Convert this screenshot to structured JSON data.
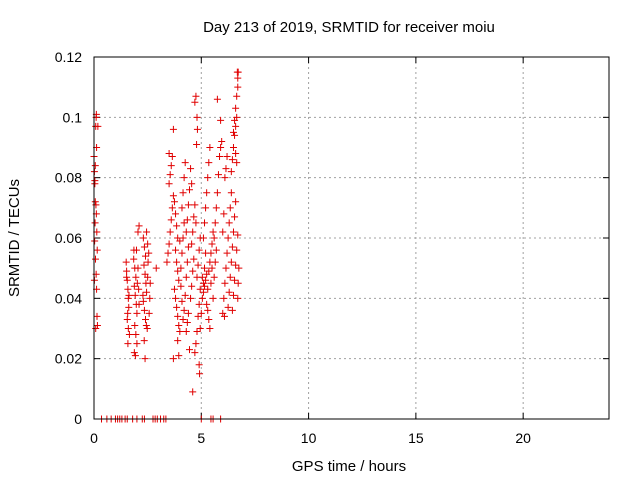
{
  "chart_data": {
    "type": "scatter",
    "title": "Day 213 of 2019, SRMTID for receiver moiu",
    "xlabel": "GPS time / hours",
    "ylabel": "SRMTID / TECUs",
    "xlim": [
      0,
      24
    ],
    "ylim": [
      0,
      0.12
    ],
    "xticks": [
      0,
      5,
      10,
      15,
      20
    ],
    "xtick_labels": [
      "0",
      "5",
      "10",
      "15",
      "20"
    ],
    "yticks": [
      0,
      0.02,
      0.04,
      0.06,
      0.08,
      0.1,
      0.12
    ],
    "ytick_labels": [
      "0",
      "0.02",
      "0.04",
      "0.06",
      "0.08",
      "0.1",
      "0.12"
    ],
    "grid": true,
    "marker": "plus",
    "color": "#e00000",
    "series": [
      {
        "points": [
          [
            0.0,
            0.087
          ],
          [
            0.02,
            0.082
          ],
          [
            0.04,
            0.079
          ],
          [
            0.06,
            0.072
          ],
          [
            0.08,
            0.097
          ],
          [
            0.1,
            0.1
          ],
          [
            0.12,
            0.09
          ],
          [
            0.05,
            0.065
          ],
          [
            0.03,
            0.059
          ],
          [
            0.07,
            0.053
          ],
          [
            0.02,
            0.046
          ],
          [
            0.09,
            0.071
          ],
          [
            0.11,
            0.068
          ],
          [
            0.13,
            0.062
          ],
          [
            0.15,
            0.056
          ],
          [
            0.1,
            0.048
          ],
          [
            0.12,
            0.043
          ],
          [
            0.14,
            0.034
          ],
          [
            0.16,
            0.031
          ],
          [
            0.08,
            0.03
          ],
          [
            0.04,
            0.078
          ],
          [
            0.06,
            0.084
          ],
          [
            0.18,
            0.097
          ],
          [
            0.11,
            0.101
          ],
          [
            1.5,
            0.052
          ],
          [
            1.52,
            0.049
          ],
          [
            1.55,
            0.046
          ],
          [
            1.58,
            0.043
          ],
          [
            1.6,
            0.04
          ],
          [
            1.62,
            0.037
          ],
          [
            1.55,
            0.033
          ],
          [
            1.6,
            0.03
          ],
          [
            1.65,
            0.028
          ],
          [
            1.58,
            0.025
          ],
          [
            1.52,
            0.047
          ],
          [
            1.63,
            0.041
          ],
          [
            1.57,
            0.035
          ],
          [
            1.85,
            0.053
          ],
          [
            1.9,
            0.05
          ],
          [
            1.95,
            0.047
          ],
          [
            1.88,
            0.044
          ],
          [
            1.92,
            0.041
          ],
          [
            1.97,
            0.038
          ],
          [
            2.0,
            0.035
          ],
          [
            1.9,
            0.031
          ],
          [
            1.95,
            0.028
          ],
          [
            2.0,
            0.025
          ],
          [
            1.88,
            0.022
          ],
          [
            1.93,
            0.021
          ],
          [
            2.02,
            0.045
          ],
          [
            1.86,
            0.056
          ],
          [
            1.98,
            0.056
          ],
          [
            2.05,
            0.05
          ],
          [
            2.08,
            0.043
          ],
          [
            2.1,
            0.038
          ],
          [
            2.05,
            0.062
          ],
          [
            2.1,
            0.064
          ],
          [
            2.3,
            0.06
          ],
          [
            2.35,
            0.057
          ],
          [
            2.4,
            0.054
          ],
          [
            2.33,
            0.051
          ],
          [
            2.38,
            0.048
          ],
          [
            2.42,
            0.045
          ],
          [
            2.45,
            0.042
          ],
          [
            2.3,
            0.039
          ],
          [
            2.35,
            0.036
          ],
          [
            2.4,
            0.033
          ],
          [
            2.44,
            0.031
          ],
          [
            2.48,
            0.03
          ],
          [
            2.5,
            0.047
          ],
          [
            2.52,
            0.052
          ],
          [
            2.55,
            0.055
          ],
          [
            2.45,
            0.062
          ],
          [
            2.5,
            0.058
          ],
          [
            2.34,
            0.026
          ],
          [
            2.38,
            0.02
          ],
          [
            2.28,
            0.041
          ],
          [
            2.6,
            0.04
          ],
          [
            2.62,
            0.045
          ],
          [
            2.57,
            0.035
          ],
          [
            2.9,
            0.05
          ],
          [
            3.4,
            0.052
          ],
          [
            3.45,
            0.055
          ],
          [
            3.5,
            0.058
          ],
          [
            3.55,
            0.062
          ],
          [
            3.6,
            0.066
          ],
          [
            3.65,
            0.07
          ],
          [
            3.7,
            0.074
          ],
          [
            3.5,
            0.078
          ],
          [
            3.55,
            0.081
          ],
          [
            3.6,
            0.084
          ],
          [
            3.65,
            0.087
          ],
          [
            3.5,
            0.088
          ],
          [
            3.7,
            0.096
          ],
          [
            3.75,
            0.072
          ],
          [
            3.8,
            0.068
          ],
          [
            3.85,
            0.064
          ],
          [
            3.9,
            0.06
          ],
          [
            3.8,
            0.056
          ],
          [
            3.85,
            0.052
          ],
          [
            3.9,
            0.049
          ],
          [
            3.95,
            0.046
          ],
          [
            3.75,
            0.043
          ],
          [
            3.8,
            0.04
          ],
          [
            3.85,
            0.037
          ],
          [
            3.9,
            0.034
          ],
          [
            3.95,
            0.031
          ],
          [
            4.0,
            0.029
          ],
          [
            3.9,
            0.026
          ],
          [
            3.95,
            0.021
          ],
          [
            3.7,
            0.02
          ],
          [
            4.05,
            0.05
          ],
          [
            4.1,
            0.055
          ],
          [
            4.15,
            0.06
          ],
          [
            4.2,
            0.065
          ],
          [
            4.1,
            0.07
          ],
          [
            4.15,
            0.075
          ],
          [
            4.2,
            0.08
          ],
          [
            4.25,
            0.085
          ],
          [
            4.0,
            0.059
          ],
          [
            4.05,
            0.044
          ],
          [
            4.1,
            0.039
          ],
          [
            4.15,
            0.033
          ],
          [
            4.2,
            0.036
          ],
          [
            4.25,
            0.041
          ],
          [
            4.3,
            0.047
          ],
          [
            4.35,
            0.052
          ],
          [
            4.4,
            0.057
          ],
          [
            4.3,
            0.062
          ],
          [
            4.35,
            0.066
          ],
          [
            4.4,
            0.071
          ],
          [
            4.45,
            0.076
          ],
          [
            4.5,
            0.083
          ],
          [
            4.55,
            0.078
          ],
          [
            4.3,
            0.029
          ],
          [
            4.35,
            0.032
          ],
          [
            4.4,
            0.035
          ],
          [
            4.5,
            0.04
          ],
          [
            4.55,
            0.044
          ],
          [
            4.6,
            0.049
          ],
          [
            4.65,
            0.053
          ],
          [
            4.55,
            0.058
          ],
          [
            4.6,
            0.062
          ],
          [
            4.65,
            0.067
          ],
          [
            4.7,
            0.071
          ],
          [
            4.75,
            0.065
          ],
          [
            4.45,
            0.023
          ],
          [
            4.6,
            0.009
          ],
          [
            4.7,
            0.022
          ],
          [
            4.75,
            0.025
          ],
          [
            4.8,
            0.029
          ],
          [
            4.85,
            0.034
          ],
          [
            4.9,
            0.038
          ],
          [
            4.95,
            0.043
          ],
          [
            4.8,
            0.047
          ],
          [
            4.85,
            0.051
          ],
          [
            4.9,
            0.056
          ],
          [
            4.95,
            0.06
          ],
          [
            4.7,
            0.105
          ],
          [
            4.75,
            0.107
          ],
          [
            4.8,
            0.1
          ],
          [
            4.82,
            0.096
          ],
          [
            4.78,
            0.091
          ],
          [
            4.9,
            0.018
          ],
          [
            4.92,
            0.015
          ],
          [
            4.95,
            0.03
          ],
          [
            5.0,
            0.035
          ],
          [
            5.05,
            0.04
          ],
          [
            5.1,
            0.045
          ],
          [
            5.15,
            0.05
          ],
          [
            5.2,
            0.055
          ],
          [
            5.1,
            0.06
          ],
          [
            5.15,
            0.065
          ],
          [
            5.2,
            0.07
          ],
          [
            5.25,
            0.075
          ],
          [
            5.3,
            0.08
          ],
          [
            5.35,
            0.085
          ],
          [
            5.4,
            0.09
          ],
          [
            5.05,
            0.047
          ],
          [
            5.1,
            0.042
          ],
          [
            5.15,
            0.044
          ],
          [
            5.2,
            0.046
          ],
          [
            5.25,
            0.048
          ],
          [
            5.3,
            0.043
          ],
          [
            5.35,
            0.049
          ],
          [
            5.4,
            0.052
          ],
          [
            5.45,
            0.055
          ],
          [
            5.5,
            0.058
          ],
          [
            5.55,
            0.062
          ],
          [
            5.25,
            0.038
          ],
          [
            5.3,
            0.036
          ],
          [
            5.35,
            0.033
          ],
          [
            5.4,
            0.03
          ],
          [
            5.45,
            0.045
          ],
          [
            5.5,
            0.05
          ],
          [
            5.6,
            0.06
          ],
          [
            5.65,
            0.065
          ],
          [
            5.7,
            0.07
          ],
          [
            5.75,
            0.075
          ],
          [
            5.8,
            0.081
          ],
          [
            5.85,
            0.087
          ],
          [
            5.9,
            0.09
          ],
          [
            5.95,
            0.092
          ],
          [
            5.55,
            0.04
          ],
          [
            5.6,
            0.047
          ],
          [
            5.65,
            0.052
          ],
          [
            5.7,
            0.056
          ],
          [
            5.75,
            0.106
          ],
          [
            5.9,
            0.099
          ],
          [
            6.0,
            0.035
          ],
          [
            6.05,
            0.04
          ],
          [
            6.1,
            0.045
          ],
          [
            6.15,
            0.05
          ],
          [
            6.2,
            0.055
          ],
          [
            6.25,
            0.06
          ],
          [
            6.3,
            0.065
          ],
          [
            6.35,
            0.07
          ],
          [
            6.4,
            0.075
          ],
          [
            6.1,
            0.08
          ],
          [
            6.15,
            0.083
          ],
          [
            6.2,
            0.087
          ],
          [
            6.05,
            0.068
          ],
          [
            6.0,
            0.062
          ],
          [
            6.08,
            0.034
          ],
          [
            6.25,
            0.037
          ],
          [
            6.3,
            0.042
          ],
          [
            6.35,
            0.047
          ],
          [
            6.4,
            0.052
          ],
          [
            6.45,
            0.057
          ],
          [
            6.5,
            0.062
          ],
          [
            6.55,
            0.067
          ],
          [
            6.6,
            0.072
          ],
          [
            6.45,
            0.036
          ],
          [
            6.5,
            0.041
          ],
          [
            6.55,
            0.046
          ],
          [
            6.6,
            0.051
          ],
          [
            6.65,
            0.056
          ],
          [
            6.7,
            0.061
          ],
          [
            6.4,
            0.082
          ],
          [
            6.45,
            0.086
          ],
          [
            6.5,
            0.09
          ],
          [
            6.55,
            0.094
          ],
          [
            6.6,
            0.097
          ],
          [
            6.65,
            0.1
          ],
          [
            6.5,
            0.095
          ],
          [
            6.55,
            0.099
          ],
          [
            6.6,
            0.103
          ],
          [
            6.65,
            0.107
          ],
          [
            6.7,
            0.11
          ],
          [
            6.72,
            0.115
          ],
          [
            6.68,
            0.115
          ],
          [
            6.7,
            0.113
          ],
          [
            6.75,
            0.05
          ],
          [
            6.72,
            0.045
          ],
          [
            6.7,
            0.04
          ],
          [
            6.65,
            0.085
          ],
          [
            6.6,
            0.088
          ],
          [
            0.35,
            0.0
          ],
          [
            0.6,
            0.0
          ],
          [
            0.8,
            0.0
          ],
          [
            1.0,
            0.0
          ],
          [
            1.1,
            0.0
          ],
          [
            1.2,
            0.0
          ],
          [
            1.3,
            0.0
          ],
          [
            1.45,
            0.0
          ],
          [
            1.55,
            0.0
          ],
          [
            1.8,
            0.0
          ],
          [
            2.0,
            0.0
          ],
          [
            2.25,
            0.0
          ],
          [
            2.35,
            0.0
          ],
          [
            2.75,
            0.0
          ],
          [
            2.85,
            0.0
          ],
          [
            2.95,
            0.0
          ],
          [
            3.1,
            0.0
          ],
          [
            3.25,
            0.0
          ],
          [
            3.35,
            0.0
          ],
          [
            5.0,
            0.0
          ],
          [
            5.45,
            0.0
          ],
          [
            5.55,
            0.0
          ],
          [
            5.9,
            0.0
          ]
        ]
      }
    ]
  }
}
